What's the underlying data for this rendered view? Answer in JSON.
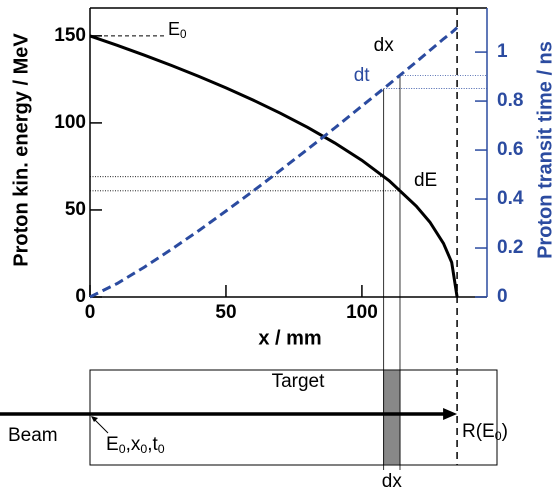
{
  "chart_data": {
    "type": "line",
    "xlabel": "x / mm",
    "ylabel": "Proton kin. energy / MeV",
    "y2label": "Proton transit time / ns",
    "x": [
      0,
      10,
      20,
      30,
      40,
      50,
      60,
      70,
      80,
      90,
      100,
      110,
      120,
      125,
      130,
      133,
      135
    ],
    "series": [
      {
        "name": "E",
        "color": "#000000",
        "style": "solid",
        "values": [
          150,
          144.6,
          138.9,
          133.0,
          126.7,
          120.1,
          113.1,
          105.6,
          97.5,
          88.5,
          78.5,
          66.8,
          52.2,
          43.0,
          30.8,
          19.9,
          0
        ]
      },
      {
        "name": "t",
        "color": "#2b4ba0",
        "style": "dashed",
        "axis": "y2",
        "values": [
          0,
          0.055,
          0.122,
          0.195,
          0.271,
          0.351,
          0.433,
          0.517,
          0.603,
          0.69,
          0.78,
          0.869,
          0.96,
          1.007,
          1.054,
          1.08,
          1.1
        ]
      }
    ],
    "xlim": [
      0,
      146
    ],
    "xticks": [
      0,
      50,
      100
    ],
    "ylim": [
      0,
      166
    ],
    "yticks": [
      0,
      50,
      100,
      150
    ],
    "y2lim": [
      0,
      1.18
    ],
    "y2ticks": [
      0,
      0.2,
      0.4,
      0.6,
      0.8,
      1
    ],
    "range_x": 135,
    "slice": {
      "x": [
        108,
        114
      ],
      "energy": [
        69.1,
        61.0
      ],
      "time": [
        0.851,
        0.905
      ]
    },
    "annotations": {
      "e0": [
        "E",
        "0"
      ],
      "dx_top": "dx",
      "dt": "dt",
      "dE": "dE"
    },
    "diagram": {
      "target": "Target",
      "beam": "Beam",
      "start": [
        "E",
        "0",
        ",x",
        "0",
        ",t",
        "0"
      ],
      "range": [
        "R(E",
        "0",
        ")"
      ],
      "dx": "dx"
    }
  }
}
